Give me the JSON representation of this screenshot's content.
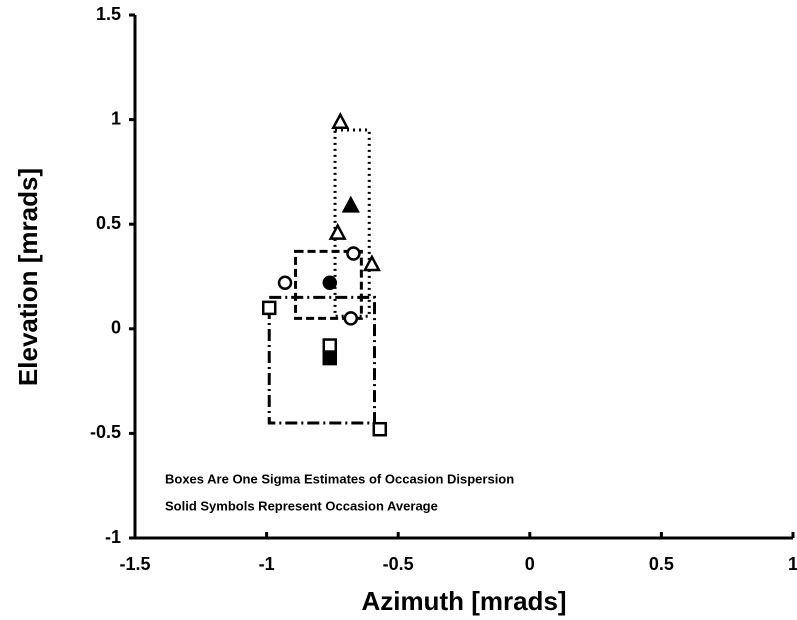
{
  "chart_data": {
    "type": "scatter",
    "x_label": "Azimuth [mrads]",
    "y_label": "Elevation [mrads]",
    "xlim": [
      -1.5,
      1
    ],
    "xticks": [
      -1.5,
      -1,
      -0.5,
      0,
      0.5,
      1
    ],
    "ylim": [
      -1,
      1.5
    ],
    "yticks": [
      -1,
      -0.5,
      0,
      0.5,
      1,
      1.5
    ],
    "color": "#000000",
    "annotations": [
      "Boxes Are One Sigma Estimates of Occasion Dispersion",
      "Solid Symbols Represent Occasion Average"
    ],
    "series": [
      {
        "marker": "triangle",
        "box_style": "dotted",
        "x": [
          -0.72,
          -0.73,
          -0.6
        ],
        "y": [
          0.99,
          0.46,
          0.31
        ],
        "average": {
          "x": -0.68,
          "y": 0.59
        },
        "box": {
          "x": [
            -0.74,
            -0.61
          ],
          "y": [
            0.06,
            0.95
          ]
        }
      },
      {
        "marker": "circle",
        "box_style": "dashed",
        "x": [
          -0.93,
          -0.67,
          -0.68
        ],
        "y": [
          0.22,
          0.36,
          0.05
        ],
        "average": {
          "x": -0.76,
          "y": 0.22
        },
        "box": {
          "x": [
            -0.89,
            -0.64
          ],
          "y": [
            0.05,
            0.37
          ]
        }
      },
      {
        "marker": "square",
        "box_style": "dashdot",
        "x": [
          -0.99,
          -0.57,
          -0.76
        ],
        "y": [
          0.1,
          -0.48,
          -0.08
        ],
        "average": {
          "x": -0.76,
          "y": -0.14
        },
        "box": {
          "x": [
            -0.99,
            -0.59
          ],
          "y": [
            -0.45,
            0.15
          ]
        }
      }
    ]
  }
}
